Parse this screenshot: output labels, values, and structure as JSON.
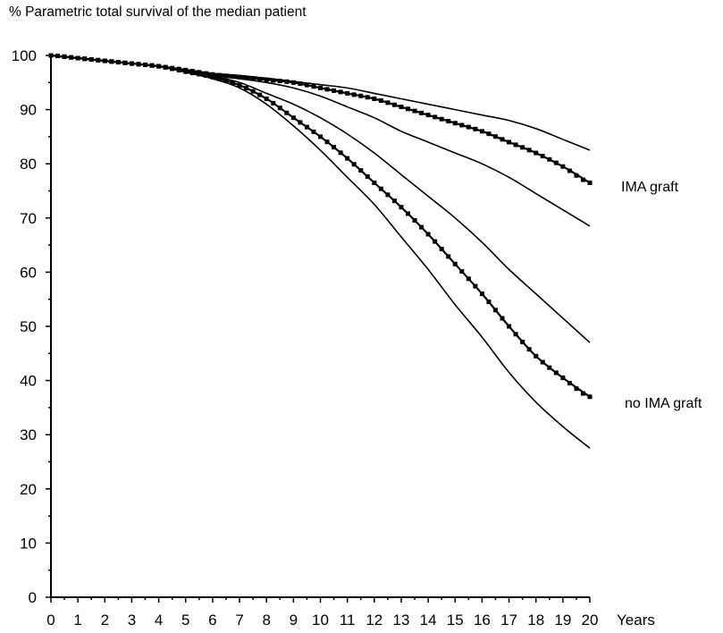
{
  "chart_data": {
    "type": "line",
    "title": "% Parametric total survival of the median patient",
    "xlabel": "Years",
    "ylabel": "",
    "xlim": [
      0,
      20
    ],
    "ylim": [
      0,
      100
    ],
    "x_ticks": [
      0,
      1,
      2,
      3,
      4,
      5,
      6,
      7,
      8,
      9,
      10,
      11,
      12,
      13,
      14,
      15,
      16,
      17,
      18,
      19,
      20
    ],
    "y_ticks": [
      0,
      10,
      20,
      30,
      40,
      50,
      60,
      70,
      80,
      90,
      100
    ],
    "grid": false,
    "x": [
      0,
      1,
      2,
      3,
      4,
      5,
      6,
      7,
      8,
      9,
      10,
      11,
      12,
      13,
      14,
      15,
      16,
      17,
      18,
      19,
      20
    ],
    "series": [
      {
        "name": "IMA graft",
        "role": "estimate",
        "markers": true,
        "values": [
          100,
          99.5,
          99,
          98.5,
          98,
          97.3,
          96.5,
          96,
          95.5,
          95,
          94,
          93,
          92,
          90.5,
          89,
          87.5,
          86,
          84,
          82,
          79.5,
          76.5
        ]
      },
      {
        "role": "upper-ci",
        "markers": false,
        "values": [
          100,
          99.5,
          99,
          98.5,
          98,
          97.4,
          96.7,
          96.3,
          95.8,
          95.2,
          94.6,
          94,
          93,
          92,
          91,
          90,
          89,
          88,
          86.5,
          84.5,
          82.5
        ]
      },
      {
        "role": "lower-ci",
        "markers": false,
        "values": [
          100,
          99.5,
          99,
          98.5,
          98,
          97.2,
          96.3,
          95.7,
          95,
          94,
          92.5,
          90.5,
          88.5,
          86,
          84,
          82,
          80,
          77.5,
          74.5,
          71.5,
          68.5
        ]
      },
      {
        "name": "no IMA graft",
        "role": "estimate",
        "markers": true,
        "values": [
          100,
          99.5,
          99,
          98.5,
          98,
          97,
          96,
          94.5,
          92,
          88.5,
          85,
          81,
          76.5,
          72,
          67,
          61.5,
          56,
          50,
          44.5,
          40.5,
          37
        ]
      },
      {
        "role": "upper-ci",
        "markers": false,
        "values": [
          100,
          99.5,
          99,
          98.5,
          98,
          97.1,
          96.2,
          95,
          93,
          91,
          88.5,
          85.5,
          82,
          78,
          74,
          70,
          65.5,
          60.5,
          56,
          51.5,
          47
        ]
      },
      {
        "role": "lower-ci",
        "markers": false,
        "values": [
          100,
          99.5,
          99,
          98.5,
          98,
          96.9,
          95.7,
          94,
          91,
          87,
          82.5,
          77.5,
          72.5,
          66.5,
          60.5,
          54,
          48,
          41.5,
          36,
          31.5,
          27.5
        ]
      }
    ]
  }
}
